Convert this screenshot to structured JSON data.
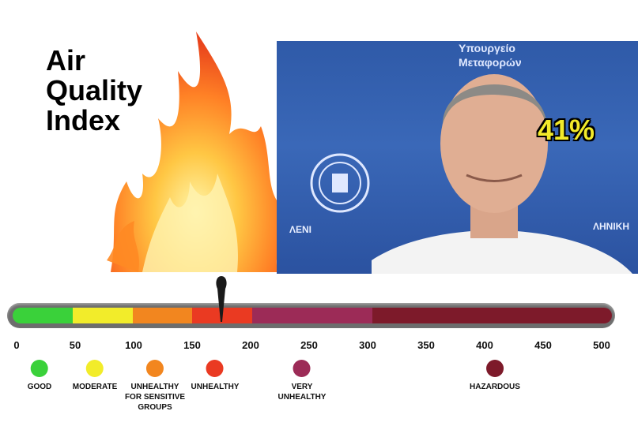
{
  "title": {
    "line1": "Air",
    "line2": "Quality",
    "line3": "Index"
  },
  "photo": {
    "header_line1": "Υπουργείο",
    "header_line2": "Μεταφορών",
    "side_text_left": "ΛΕΝΙ",
    "side_text_right": "ΛΗΝΙΚΗ",
    "percent": "41%"
  },
  "scale": {
    "ticks": [
      "0",
      "50",
      "100",
      "150",
      "200",
      "250",
      "300",
      "350",
      "400",
      "450",
      "500"
    ],
    "max_value": 500,
    "pointer_value": 175,
    "segments": [
      {
        "from": 0,
        "to": 50,
        "color": "#3ad13a"
      },
      {
        "from": 50,
        "to": 100,
        "color": "#f2ec2a"
      },
      {
        "from": 100,
        "to": 150,
        "color": "#f2861f"
      },
      {
        "from": 150,
        "to": 200,
        "color": "#ea3a22"
      },
      {
        "from": 200,
        "to": 300,
        "color": "#9c2b57"
      },
      {
        "from": 300,
        "to": 500,
        "color": "#7d1a2a"
      }
    ]
  },
  "legend": [
    {
      "label": [
        "GOOD"
      ],
      "color": "#3ad13a",
      "value": 0
    },
    {
      "label": [
        "MODERATE"
      ],
      "color": "#f2ec2a",
      "value": 50
    },
    {
      "label": [
        "UNHEALTHY",
        "FOR SENSITIVE",
        "GROUPS"
      ],
      "color": "#f2861f",
      "value": 100
    },
    {
      "label": [
        "UNHEALTHY"
      ],
      "color": "#ea3a22",
      "value": 150
    },
    {
      "label": [
        "VERY",
        "UNHEALTHY"
      ],
      "color": "#9c2b57",
      "value": 250
    },
    {
      "label": [
        "HAZARDOUS"
      ],
      "color": "#7d1a2a",
      "value": 400
    }
  ]
}
